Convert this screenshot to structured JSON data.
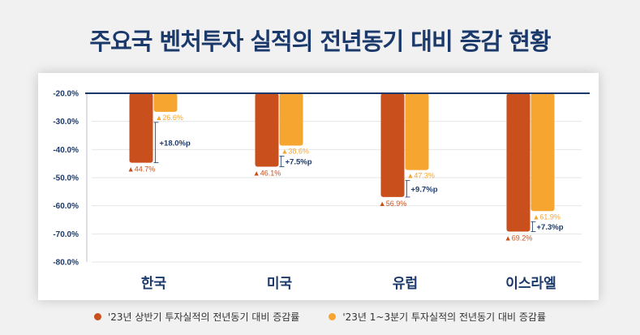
{
  "chart_data": {
    "type": "bar",
    "title": "주요국 벤처투자 실적의 전년동기 대비 증감 현황",
    "categories": [
      "한국",
      "미국",
      "유럽",
      "이스라엘"
    ],
    "series": [
      {
        "name": "'23년 상반기 투자실적의 전년동기 대비 증감률",
        "color": "#c9501c",
        "values": [
          -44.7,
          -46.1,
          -56.9,
          -69.2
        ],
        "labels": [
          "▲44.7%",
          "▲46.1%",
          "▲56.9%",
          "▲69.2%"
        ]
      },
      {
        "name": "'23년 1~3분기 투자실적의 전년동기 대비 증감률",
        "color": "#f6a531",
        "values": [
          -26.6,
          -38.6,
          -47.3,
          -61.9
        ],
        "labels": [
          "▲26.6%",
          "▲38.6%",
          "▲47.3%",
          "▲61.9%"
        ]
      }
    ],
    "differences": [
      "+18.0%p",
      "+7.5%p",
      "+9.7%p",
      "+7.3%p"
    ],
    "yticks": [
      -20,
      -30,
      -40,
      -50,
      -60,
      -70,
      -80
    ],
    "ytick_labels": [
      "-20.0%",
      "-30.0%",
      "-40.0%",
      "-50.0%",
      "-60.0%",
      "-70.0%",
      "-80.0%"
    ],
    "ylim": [
      -80,
      -20
    ],
    "bar_base": -20,
    "xlabel": "",
    "ylabel": "",
    "grid": true,
    "legend_position": "bottom"
  }
}
